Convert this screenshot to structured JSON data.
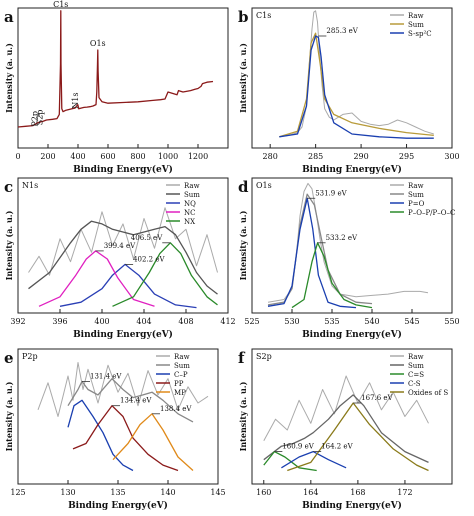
{
  "chart_data": [
    {
      "panel_letter": "a",
      "type": "line",
      "xlabel": "Binding Energy(eV)",
      "ylabel": "Intensity (a. u.)",
      "xlim": [
        0,
        1400
      ],
      "ylim": [
        0,
        100
      ],
      "xticks": [
        0,
        200,
        400,
        600,
        800,
        1000,
        1200
      ],
      "series": [
        {
          "color": "#8b1a1a",
          "x": [
            0,
            50,
            100,
            130,
            165,
            190,
            230,
            260,
            275,
            283,
            285,
            287,
            292,
            300,
            320,
            340,
            360,
            380,
            399,
            405,
            420,
            440,
            460,
            480,
            500,
            520,
            525,
            530,
            532,
            534,
            540,
            560,
            600,
            700,
            800,
            900,
            950,
            980,
            1000,
            1060,
            1070,
            1100,
            1150,
            1180,
            1200,
            1220,
            1230,
            1260,
            1300
          ],
          "y": [
            15,
            15.5,
            16,
            18,
            19,
            20,
            20.5,
            21,
            24,
            60,
            98,
            60,
            28,
            26,
            27,
            27.5,
            28,
            28.5,
            31,
            28,
            28.5,
            29,
            29.2,
            29.5,
            30,
            31,
            40,
            60,
            70,
            55,
            36,
            33,
            32,
            32.5,
            33,
            34,
            34.5,
            35,
            40,
            38,
            41,
            40,
            41,
            42,
            42.5,
            44,
            46,
            47,
            47.5
          ]
        }
      ],
      "annotations": [
        {
          "text": "C1s",
          "x": 285,
          "y": 98
        },
        {
          "text": "O1s",
          "x": 532,
          "y": 70
        },
        {
          "text": "N1s",
          "x": 399,
          "y": 31
        },
        {
          "text": "S2p",
          "x": 165,
          "y": 19
        },
        {
          "text": "P2p",
          "x": 131,
          "y": 18
        }
      ]
    },
    {
      "panel_letter": "b",
      "type": "line",
      "panel_title": "C1s",
      "xlabel": "Binding Energy(eV)",
      "ylabel": "Intensity (a. u.)",
      "xlim": [
        278,
        300
      ],
      "ylim": [
        0,
        100
      ],
      "xticks": [
        280,
        285,
        290,
        295,
        300
      ],
      "series": [
        {
          "name": "Raw",
          "color": "#aaaaaa",
          "x": [
            281,
            282,
            283,
            283.5,
            284,
            284.3,
            284.6,
            284.8,
            285,
            285.2,
            285.4,
            285.7,
            286,
            286.5,
            287,
            288,
            289,
            290,
            291,
            292,
            293,
            294,
            295,
            296,
            297,
            298
          ],
          "y": [
            8,
            9,
            11,
            15,
            30,
            60,
            85,
            97,
            98,
            90,
            70,
            45,
            28,
            22,
            20,
            24,
            25,
            19,
            17,
            16,
            17,
            20,
            18,
            15,
            12,
            10
          ]
        },
        {
          "name": "Sum",
          "color": "#b89b3a",
          "x": [
            281,
            283,
            284,
            284.5,
            285,
            285.5,
            286,
            287,
            289,
            292,
            295,
            298
          ],
          "y": [
            8,
            12,
            35,
            75,
            82,
            60,
            35,
            24,
            18,
            14,
            11,
            9
          ]
        },
        {
          "name": "S-sp²C",
          "color": "#1a3fb0",
          "x": [
            281,
            283,
            284,
            284.5,
            285,
            285.3,
            285.6,
            286,
            287,
            289,
            292,
            295,
            298
          ],
          "y": [
            8,
            10,
            30,
            70,
            80,
            79,
            65,
            38,
            18,
            10,
            8,
            7,
            7
          ]
        }
      ],
      "annotations": [
        {
          "text": "285.3 eV",
          "x": 285.3,
          "y": 80
        }
      ]
    },
    {
      "panel_letter": "c",
      "type": "line",
      "panel_title": "N1s",
      "xlabel": "Binding Energy(eV)",
      "ylabel": "Intensity (a. u.)",
      "xlim": [
        392,
        412
      ],
      "ylim": [
        0,
        100
      ],
      "xticks": [
        392,
        396,
        400,
        404,
        408,
        412
      ],
      "series": [
        {
          "name": "Raw",
          "color": "#aaaaaa",
          "x": [
            393,
            394,
            395,
            396,
            397,
            398,
            399,
            400,
            401,
            402,
            403,
            404,
            405,
            406,
            407,
            408,
            409,
            410,
            411
          ],
          "y": [
            30,
            42,
            28,
            55,
            38,
            62,
            45,
            75,
            50,
            66,
            40,
            70,
            48,
            78,
            55,
            62,
            35,
            58,
            30
          ]
        },
        {
          "name": "Sum",
          "color": "#555555",
          "x": [
            393,
            395,
            397,
            398,
            399,
            400,
            401,
            402,
            403,
            404,
            405,
            406,
            407,
            408,
            409,
            410,
            411
          ],
          "y": [
            18,
            30,
            52,
            62,
            68,
            66,
            62,
            60,
            58,
            60,
            62,
            64,
            58,
            45,
            30,
            20,
            14
          ]
        },
        {
          "name": "NQ",
          "color": "#2a3fb5",
          "x": [
            396,
            398,
            400,
            401,
            402.2,
            403.5,
            405,
            407,
            409
          ],
          "y": [
            5,
            8,
            18,
            28,
            36,
            28,
            14,
            6,
            4
          ]
        },
        {
          "name": "NC",
          "color": "#e020c0",
          "x": [
            394,
            396,
            397.5,
            398.5,
            399.4,
            400.5,
            401.5,
            403,
            405
          ],
          "y": [
            5,
            12,
            28,
            40,
            46,
            40,
            26,
            10,
            5
          ]
        },
        {
          "name": "NX",
          "color": "#2a8a2a",
          "x": [
            401,
            403,
            404.5,
            405.5,
            406.5,
            407.5,
            408.5,
            410,
            411
          ],
          "y": [
            5,
            12,
            30,
            44,
            52,
            44,
            28,
            12,
            6
          ]
        }
      ],
      "annotations": [
        {
          "text": "406.5 eV",
          "x": 406.5,
          "y": 52
        },
        {
          "text": "402.2 eV",
          "x": 402.2,
          "y": 36
        },
        {
          "text": "399.4 eV",
          "x": 399.4,
          "y": 46
        }
      ]
    },
    {
      "panel_letter": "d",
      "type": "line",
      "panel_title": "O1s",
      "xlabel": "Binding Energy(eV)",
      "ylabel": "Intensity (a. u.)",
      "xlim": [
        525,
        550
      ],
      "ylim": [
        0,
        100
      ],
      "xticks": [
        525,
        530,
        535,
        540,
        545,
        550
      ],
      "series": [
        {
          "name": "Raw",
          "color": "#aaaaaa",
          "x": [
            527,
            528,
            529,
            530,
            530.5,
            531,
            531.5,
            532,
            532.5,
            533,
            533.5,
            534,
            535,
            536,
            537,
            538,
            540,
            542,
            544,
            546,
            547
          ],
          "y": [
            8,
            9,
            10,
            18,
            40,
            72,
            90,
            96,
            92,
            75,
            55,
            38,
            20,
            14,
            13,
            12,
            13,
            14,
            16,
            16,
            15
          ]
        },
        {
          "name": "Sum",
          "color": "#888888",
          "x": [
            527,
            529,
            530,
            531,
            531.9,
            532.8,
            533.5,
            534.5,
            536,
            538,
            540
          ],
          "y": [
            6,
            8,
            18,
            65,
            88,
            80,
            60,
            32,
            14,
            8,
            7
          ]
        },
        {
          "name": "P=O",
          "color": "#1a3fb0",
          "x": [
            527,
            529,
            530,
            531,
            531.9,
            532.6,
            533.3,
            534.5,
            536,
            538
          ],
          "y": [
            5,
            7,
            20,
            62,
            85,
            62,
            28,
            8,
            5,
            4
          ]
        },
        {
          "name": "P–O–P/P–O–C",
          "color": "#2a8a2a",
          "x": [
            530,
            531.5,
            532.5,
            533.2,
            534,
            535,
            536.5,
            538,
            540
          ],
          "y": [
            4,
            10,
            38,
            52,
            42,
            22,
            10,
            6,
            4
          ]
        }
      ],
      "annotations": [
        {
          "text": "531.9 eV",
          "x": 531.9,
          "y": 85
        },
        {
          "text": "533.2 eV",
          "x": 533.2,
          "y": 52
        }
      ]
    },
    {
      "panel_letter": "e",
      "type": "line",
      "panel_title": "P2p",
      "xlabel": "Binding Energy(eV)",
      "ylabel": "Intensity (a. u.)",
      "xlim": [
        125,
        145
      ],
      "ylim": [
        0,
        100
      ],
      "xticks": [
        125,
        130,
        135,
        140,
        145
      ],
      "series": [
        {
          "name": "Raw",
          "color": "#aaaaaa",
          "x": [
            127,
            128,
            129,
            130,
            130.5,
            131,
            131.5,
            132,
            133,
            134,
            135,
            136,
            137,
            138,
            139,
            140,
            141,
            142,
            143,
            144
          ],
          "y": [
            55,
            75,
            50,
            80,
            62,
            90,
            70,
            85,
            60,
            88,
            68,
            82,
            58,
            84,
            66,
            78,
            55,
            72,
            60,
            65
          ]
        },
        {
          "name": "Sum",
          "color": "#888888",
          "x": [
            130,
            131,
            131.4,
            132,
            133,
            134.4,
            135.5,
            136.5,
            137.5,
            138.4,
            139.5,
            141,
            142.5
          ],
          "y": [
            58,
            70,
            76,
            70,
            66,
            78,
            70,
            64,
            66,
            68,
            62,
            52,
            46
          ]
        },
        {
          "name": "C–P",
          "color": "#1a3fb0",
          "x": [
            130,
            130.6,
            131.4,
            132.5,
            133.5,
            134.5,
            135.5,
            136.5
          ],
          "y": [
            42,
            58,
            62,
            50,
            38,
            22,
            14,
            10
          ]
        },
        {
          "name": "PP",
          "color": "#8b1a1a",
          "x": [
            130.5,
            131.8,
            133,
            134.4,
            135.5,
            136.5,
            138,
            139.5,
            141
          ],
          "y": [
            26,
            30,
            44,
            58,
            50,
            34,
            22,
            14,
            10
          ]
        },
        {
          "name": "MP",
          "color": "#e08a1a",
          "x": [
            134.5,
            136,
            137.2,
            138.4,
            139.5,
            141,
            142.5
          ],
          "y": [
            18,
            30,
            44,
            52,
            40,
            20,
            10
          ]
        }
      ],
      "annotations": [
        {
          "text": "131.4 eV",
          "x": 131.4,
          "y": 76
        },
        {
          "text": "134.4 eV",
          "x": 134.4,
          "y": 58
        },
        {
          "text": "138.4 eV",
          "x": 138.4,
          "y": 52
        }
      ]
    },
    {
      "panel_letter": "f",
      "type": "line",
      "panel_title": "S2p",
      "xlabel": "Binding Energy(eV)",
      "ylabel": "Intensity (a. u.)",
      "xlim": [
        159,
        176
      ],
      "ylim": [
        0,
        100
      ],
      "xticks": [
        160,
        164,
        168,
        172
      ],
      "series": [
        {
          "name": "Raw",
          "color": "#aaaaaa",
          "x": [
            160,
            161,
            162,
            163,
            164,
            165,
            166,
            167,
            168,
            169,
            170,
            171,
            172,
            173,
            174
          ],
          "y": [
            32,
            48,
            40,
            62,
            45,
            70,
            52,
            80,
            60,
            75,
            55,
            68,
            50,
            62,
            45
          ]
        },
        {
          "name": "Sum",
          "color": "#666666",
          "x": [
            160,
            161.5,
            162.5,
            163.5,
            164.2,
            165.5,
            166.5,
            167.6,
            168.5,
            170,
            172,
            174
          ],
          "y": [
            18,
            28,
            30,
            34,
            38,
            48,
            58,
            66,
            58,
            38,
            24,
            16
          ]
        },
        {
          "name": "C=S",
          "color": "#2a8a2a",
          "x": [
            160,
            160.9,
            161.8,
            163,
            164.5
          ],
          "y": [
            14,
            24,
            20,
            12,
            10
          ]
        },
        {
          "name": "C-S",
          "color": "#1a3fb0",
          "x": [
            161.5,
            163,
            164.2,
            165.5,
            167
          ],
          "y": [
            12,
            20,
            24,
            18,
            12
          ]
        },
        {
          "name": "Oxides of S",
          "color": "#8a7a1a",
          "x": [
            162,
            164,
            166,
            167.6,
            169,
            171,
            173,
            174
          ],
          "y": [
            10,
            16,
            40,
            60,
            44,
            26,
            14,
            10
          ]
        }
      ],
      "annotations": [
        {
          "text": "160.9 eV",
          "x": 160.9,
          "y": 24
        },
        {
          "text": "164.2 eV",
          "x": 164.2,
          "y": 24
        },
        {
          "text": "167.6 eV",
          "x": 167.6,
          "y": 60
        }
      ]
    }
  ]
}
